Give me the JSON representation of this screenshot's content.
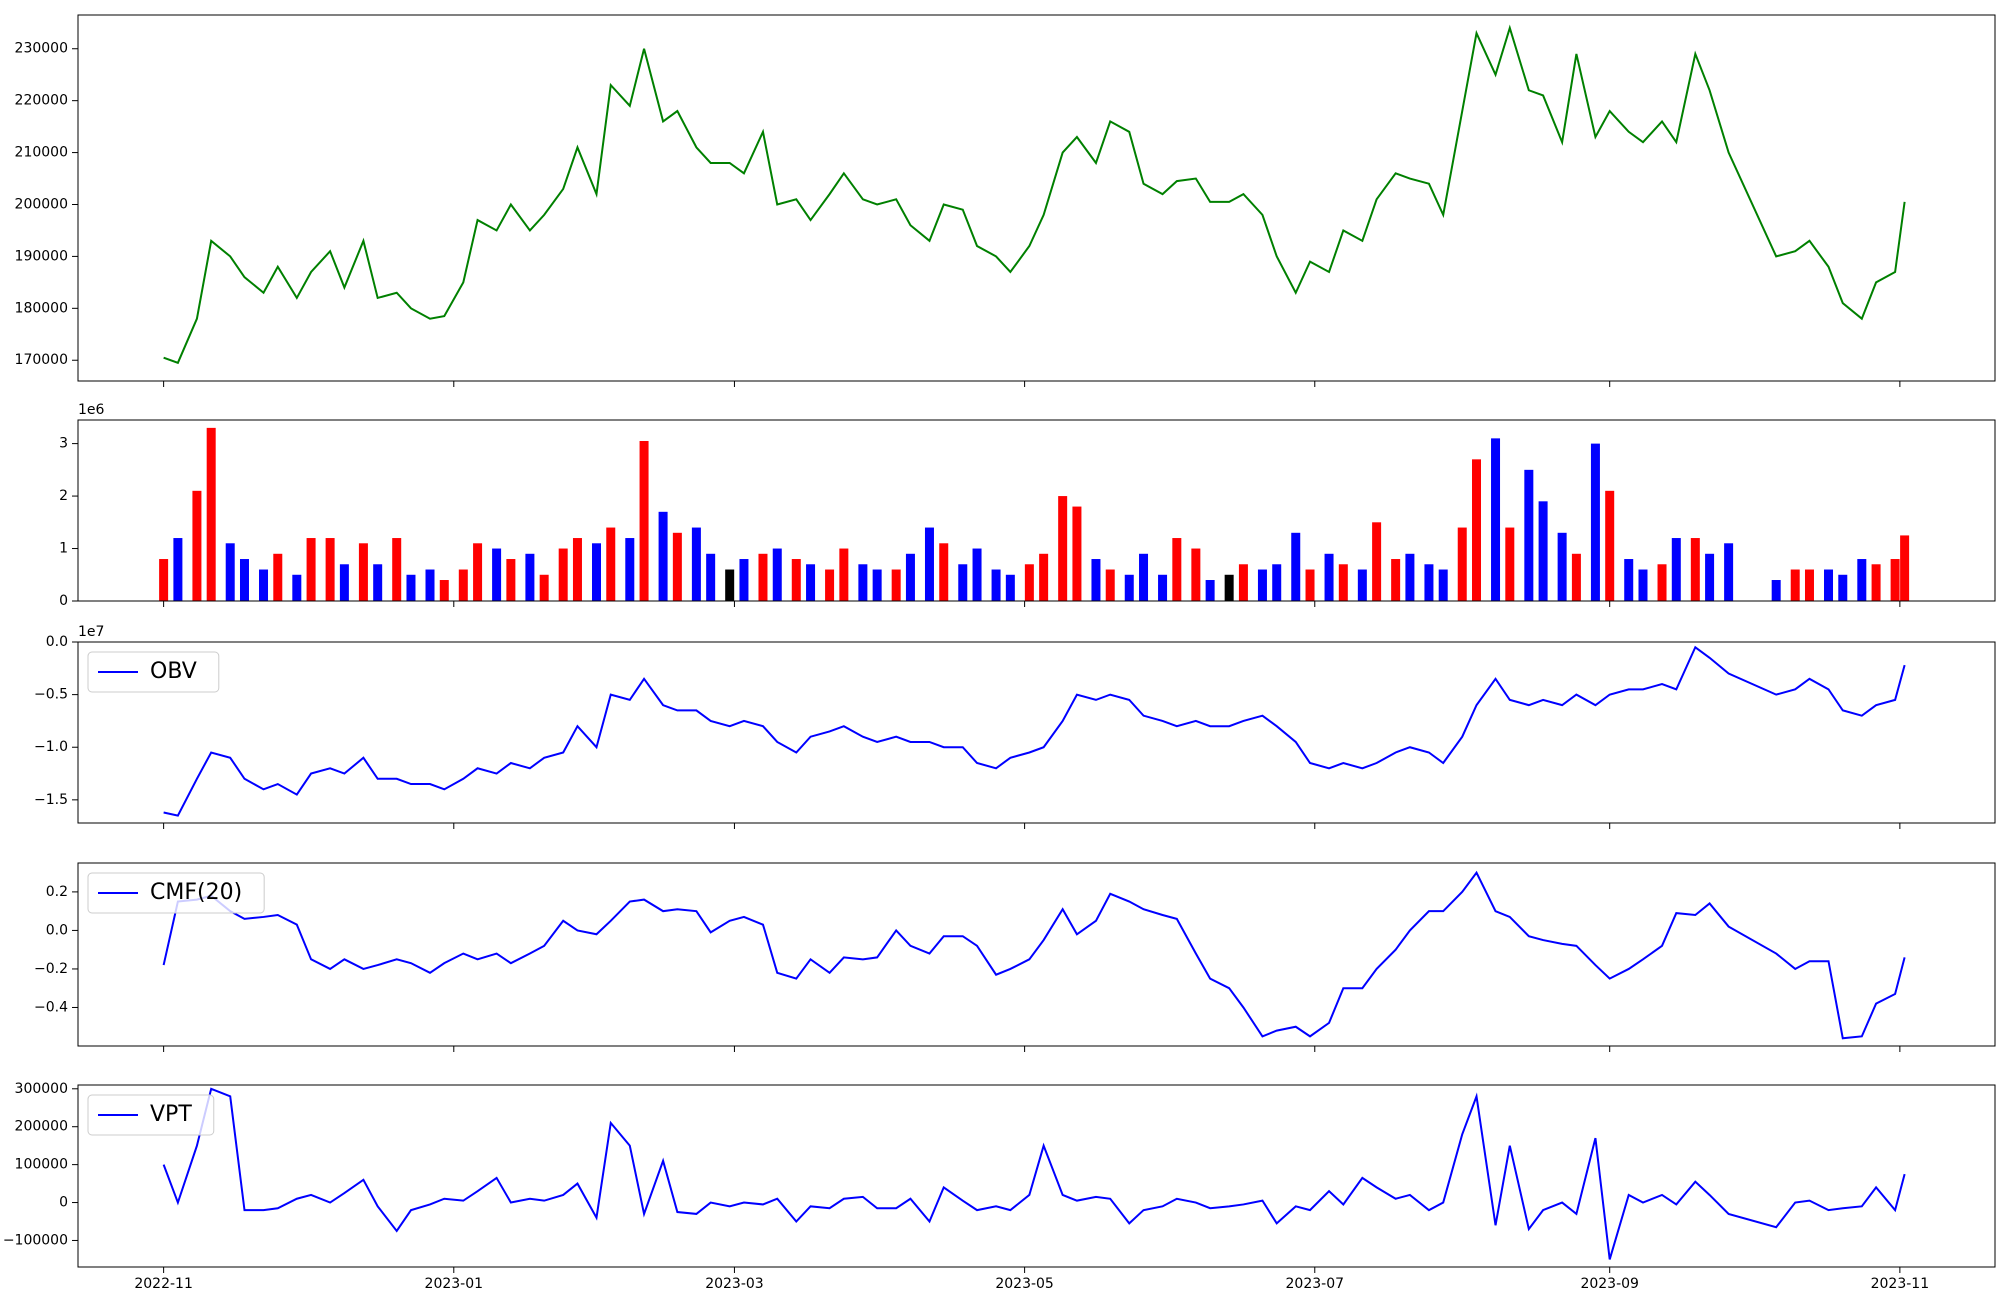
{
  "chart_data": [
    {
      "type": "line",
      "series": [
        {
          "color": "#008000",
          "values": [
            170500,
            169500,
            178000,
            193000,
            190000,
            186000,
            183000,
            188000,
            182000,
            187000,
            191000,
            184000,
            193000,
            182000,
            183000,
            180000,
            178000,
            178500,
            185000,
            197000,
            195000,
            200000,
            195000,
            198000,
            203000,
            211000,
            202000,
            223000,
            219000,
            230000,
            216000,
            218000,
            211000,
            208000,
            208000,
            206000,
            214000,
            200000,
            201000,
            197000,
            202000,
            206000,
            201000,
            200000,
            201000,
            196000,
            193000,
            200000,
            199000,
            192000,
            190000,
            187000,
            192000,
            198000,
            210000,
            213000,
            208000,
            216000,
            214000,
            204000,
            202000,
            204500,
            205000,
            200500,
            200500,
            202000,
            198000,
            190000,
            183000,
            189000,
            187000,
            195000,
            193000,
            201000,
            206000,
            205000,
            204000,
            198000,
            218000,
            233000,
            225000,
            234000,
            222000,
            221000,
            212000,
            229000,
            213000,
            218000,
            214000,
            212000,
            216000,
            212000,
            229000,
            222000,
            210000,
            190000,
            191000,
            193000,
            188000,
            181000,
            178000,
            185000,
            187000,
            200500
          ]
        }
      ],
      "ylim": [
        166000,
        236500
      ],
      "yticks": [
        170000,
        180000,
        190000,
        200000,
        210000,
        220000,
        230000
      ]
    },
    {
      "type": "bar",
      "values": [
        800000,
        1200000,
        2100000,
        3300000,
        1100000,
        800000,
        600000,
        900000,
        500000,
        1200000,
        1200000,
        700000,
        1100000,
        700000,
        1200000,
        500000,
        600000,
        400000,
        600000,
        1100000,
        1000000,
        800000,
        900000,
        500000,
        1000000,
        1200000,
        1100000,
        1400000,
        1200000,
        3050000,
        1700000,
        1300000,
        1400000,
        900000,
        600000,
        800000,
        900000,
        1000000,
        800000,
        700000,
        600000,
        1000000,
        700000,
        600000,
        600000,
        900000,
        1400000,
        1100000,
        700000,
        1000000,
        600000,
        500000,
        700000,
        900000,
        2000000,
        1800000,
        800000,
        600000,
        500000,
        900000,
        500000,
        1200000,
        1000000,
        400000,
        500000,
        700000,
        600000,
        700000,
        1300000,
        600000,
        900000,
        700000,
        600000,
        1500000,
        800000,
        900000,
        700000,
        600000,
        1400000,
        2700000,
        3100000,
        1400000,
        2500000,
        1900000,
        1300000,
        900000,
        3000000,
        2100000,
        800000,
        600000,
        700000,
        1200000,
        1200000,
        900000,
        1100000,
        400000,
        600000,
        600000,
        600000,
        500000,
        800000,
        700000,
        800000,
        1250000
      ],
      "colors": [
        "red",
        "blue",
        "red",
        "red",
        "blue",
        "blue",
        "blue",
        "red",
        "blue",
        "red",
        "red",
        "blue",
        "red",
        "blue",
        "red",
        "blue",
        "blue",
        "red",
        "red",
        "red",
        "blue",
        "red",
        "blue",
        "red",
        "red",
        "red",
        "blue",
        "red",
        "blue",
        "red",
        "blue",
        "red",
        "blue",
        "blue",
        "black",
        "blue",
        "red",
        "blue",
        "red",
        "blue",
        "red",
        "red",
        "blue",
        "blue",
        "red",
        "blue",
        "blue",
        "red",
        "blue",
        "blue",
        "blue",
        "blue",
        "red",
        "red",
        "red",
        "red",
        "blue",
        "red",
        "blue",
        "blue",
        "blue",
        "red",
        "red",
        "blue",
        "black",
        "red",
        "blue",
        "blue",
        "blue",
        "red",
        "blue",
        "red",
        "blue",
        "red",
        "red",
        "blue",
        "blue",
        "blue",
        "red",
        "red",
        "blue",
        "red",
        "blue",
        "blue",
        "blue",
        "red",
        "blue",
        "red",
        "blue",
        "blue",
        "red",
        "blue",
        "red",
        "blue",
        "blue",
        "blue",
        "red",
        "red",
        "blue",
        "blue",
        "blue",
        "red",
        "red",
        "red"
      ],
      "ylim": [
        0,
        3450000
      ],
      "y_offset": "1e6",
      "yticks": [
        0,
        {
          "value": 1000000,
          "label": "1"
        },
        {
          "value": 2000000,
          "label": "2"
        },
        {
          "value": 3000000,
          "label": "3"
        }
      ]
    },
    {
      "type": "line",
      "legend": "upper left",
      "y_offset": "1e7",
      "series": [
        {
          "name": "OBV",
          "color": "#0000ff",
          "values": [
            -16200000,
            -16500000,
            -13000000,
            -10500000,
            -11000000,
            -13000000,
            -14000000,
            -13500000,
            -14500000,
            -12500000,
            -12000000,
            -12500000,
            -11000000,
            -13000000,
            -13000000,
            -13500000,
            -13500000,
            -14000000,
            -13000000,
            -12000000,
            -12500000,
            -11500000,
            -12000000,
            -11000000,
            -10500000,
            -8000000,
            -10000000,
            -5000000,
            -5500000,
            -3500000,
            -6000000,
            -6500000,
            -6500000,
            -7500000,
            -8000000,
            -7500000,
            -8000000,
            -9500000,
            -10500000,
            -9000000,
            -8500000,
            -8000000,
            -9000000,
            -9500000,
            -9000000,
            -9500000,
            -9500000,
            -10000000,
            -10000000,
            -11500000,
            -12000000,
            -11000000,
            -10500000,
            -10000000,
            -7500000,
            -5000000,
            -5500000,
            -5000000,
            -5500000,
            -7000000,
            -7500000,
            -8000000,
            -7500000,
            -8000000,
            -8000000,
            -7500000,
            -7000000,
            -8000000,
            -9500000,
            -11500000,
            -12000000,
            -11500000,
            -12000000,
            -11500000,
            -10500000,
            -10000000,
            -10500000,
            -11500000,
            -9000000,
            -6000000,
            -3500000,
            -5500000,
            -6000000,
            -5500000,
            -6000000,
            -5000000,
            -6000000,
            -5000000,
            -4500000,
            -4500000,
            -4000000,
            -4500000,
            -500000,
            -1500000,
            -3000000,
            -5000000,
            -4500000,
            -3500000,
            -4500000,
            -6500000,
            -7000000,
            -6000000,
            -5500000,
            -2200000
          ]
        }
      ],
      "ylim": [
        -17200000,
        0
      ],
      "yticks": [
        {
          "value": -15000000,
          "label": "−1.5"
        },
        {
          "value": -10000000,
          "label": "−1.0"
        },
        {
          "value": -5000000,
          "label": "−0.5"
        },
        {
          "value": 0,
          "label": "0.0"
        }
      ]
    },
    {
      "type": "line",
      "legend": "upper left",
      "series": [
        {
          "name": "CMF(20)",
          "color": "#0000ff",
          "values": [
            -0.18,
            0.15,
            0.16,
            0.18,
            0.1,
            0.06,
            0.07,
            0.08,
            0.03,
            -0.15,
            -0.2,
            -0.15,
            -0.2,
            -0.18,
            -0.15,
            -0.17,
            -0.22,
            -0.17,
            -0.12,
            -0.15,
            -0.12,
            -0.17,
            -0.12,
            -0.08,
            0.05,
            0.0,
            -0.02,
            0.05,
            0.15,
            0.16,
            0.1,
            0.11,
            0.1,
            -0.01,
            0.05,
            0.07,
            0.03,
            -0.22,
            -0.25,
            -0.15,
            -0.22,
            -0.14,
            -0.15,
            -0.14,
            0.0,
            -0.08,
            -0.12,
            -0.03,
            -0.03,
            -0.08,
            -0.23,
            -0.2,
            -0.15,
            -0.05,
            0.11,
            -0.02,
            0.05,
            0.19,
            0.15,
            0.11,
            0.08,
            0.06,
            -0.12,
            -0.25,
            -0.3,
            -0.4,
            -0.55,
            -0.52,
            -0.5,
            -0.55,
            -0.48,
            -0.3,
            -0.3,
            -0.2,
            -0.1,
            0.0,
            0.1,
            0.1,
            0.2,
            0.3,
            0.1,
            0.07,
            -0.03,
            -0.05,
            -0.07,
            -0.08,
            -0.18,
            -0.25,
            -0.2,
            -0.15,
            -0.08,
            0.09,
            0.08,
            0.14,
            0.02,
            -0.12,
            -0.2,
            -0.16,
            -0.16,
            -0.56,
            -0.55,
            -0.38,
            -0.33,
            -0.14
          ]
        }
      ],
      "ylim": [
        -0.6,
        0.35
      ],
      "yticks": [
        {
          "value": -0.4,
          "label": "−0.4"
        },
        {
          "value": -0.2,
          "label": "−0.2"
        },
        {
          "value": 0,
          "label": "0.0"
        },
        0.2
      ]
    },
    {
      "type": "line",
      "legend": "upper left",
      "series": [
        {
          "name": "VPT",
          "color": "#0000ff",
          "values": [
            100000,
            0,
            150000,
            300000,
            280000,
            -20000,
            -20000,
            -15000,
            10000,
            20000,
            0,
            25000,
            60000,
            -10000,
            -75000,
            -20000,
            -5000,
            10000,
            5000,
            30000,
            65000,
            0,
            10000,
            5000,
            20000,
            50000,
            -40000,
            210000,
            150000,
            -30000,
            110000,
            -25000,
            -30000,
            0,
            -10000,
            0,
            -5000,
            10000,
            -50000,
            -10000,
            -15000,
            10000,
            15000,
            -15000,
            -15000,
            10000,
            -50000,
            40000,
            5000,
            -20000,
            -10000,
            -20000,
            20000,
            150000,
            20000,
            5000,
            15000,
            10000,
            -55000,
            -20000,
            -10000,
            10000,
            0,
            -15000,
            -10000,
            -5000,
            5000,
            -55000,
            -10000,
            -20000,
            30000,
            -5000,
            65000,
            40000,
            10000,
            20000,
            -20000,
            0,
            180000,
            280000,
            -60000,
            150000,
            -70000,
            -20000,
            0,
            -30000,
            170000,
            -150000,
            20000,
            0,
            20000,
            -5000,
            55000,
            20000,
            -30000,
            -65000,
            0,
            5000,
            -20000,
            -15000,
            -10000,
            40000,
            -20000,
            75000
          ]
        }
      ],
      "ylim": [
        -170000,
        310000
      ],
      "yticks": [
        {
          "value": -100000,
          "label": "−100000"
        },
        0,
        100000,
        200000,
        300000
      ],
      "x": [
        "2022-11-01",
        "2022-11-04",
        "2022-11-08",
        "2022-11-11",
        "2022-11-15",
        "2022-11-18",
        "2022-11-22",
        "2022-11-25",
        "2022-11-29",
        "2022-12-02",
        "2022-12-06",
        "2022-12-09",
        "2022-12-13",
        "2022-12-16",
        "2022-12-20",
        "2022-12-23",
        "2022-12-27",
        "2022-12-30",
        "2023-01-03",
        "2023-01-06",
        "2023-01-10",
        "2023-01-13",
        "2023-01-17",
        "2023-01-20",
        "2023-01-24",
        "2023-01-27",
        "2023-01-31",
        "2023-02-03",
        "2023-02-07",
        "2023-02-10",
        "2023-02-14",
        "2023-02-17",
        "2023-02-21",
        "2023-02-24",
        "2023-02-28",
        "2023-03-03",
        "2023-03-07",
        "2023-03-10",
        "2023-03-14",
        "2023-03-17",
        "2023-03-21",
        "2023-03-24",
        "2023-03-28",
        "2023-03-31",
        "2023-04-04",
        "2023-04-07",
        "2023-04-11",
        "2023-04-14",
        "2023-04-18",
        "2023-04-21",
        "2023-04-25",
        "2023-04-28",
        "2023-05-02",
        "2023-05-05",
        "2023-05-09",
        "2023-05-12",
        "2023-05-16",
        "2023-05-19",
        "2023-05-23",
        "2023-05-26",
        "2023-05-30",
        "2023-06-02",
        "2023-06-06",
        "2023-06-09",
        "2023-06-13",
        "2023-06-16",
        "2023-06-20",
        "2023-06-23",
        "2023-06-27",
        "2023-06-30",
        "2023-07-04",
        "2023-07-07",
        "2023-07-11",
        "2023-07-14",
        "2023-07-18",
        "2023-07-21",
        "2023-07-25",
        "2023-07-28",
        "2023-08-01",
        "2023-08-04",
        "2023-08-08",
        "2023-08-11",
        "2023-08-15",
        "2023-08-18",
        "2023-08-22",
        "2023-08-25",
        "2023-08-29",
        "2023-09-01",
        "2023-09-05",
        "2023-09-08",
        "2023-09-12",
        "2023-09-15",
        "2023-09-19",
        "2023-09-22",
        "2023-09-26",
        "2023-10-06",
        "2023-10-10",
        "2023-10-13",
        "2023-10-17",
        "2023-10-20",
        "2023-10-24",
        "2023-10-27",
        "2023-10-31",
        "2023-11-02"
      ],
      "xlim": [
        "2022-10-14",
        "2023-11-21"
      ],
      "xticks": [
        "2022-11",
        "2023-01",
        "2023-03",
        "2023-05",
        "2023-07",
        "2023-09",
        "2023-11"
      ]
    }
  ]
}
